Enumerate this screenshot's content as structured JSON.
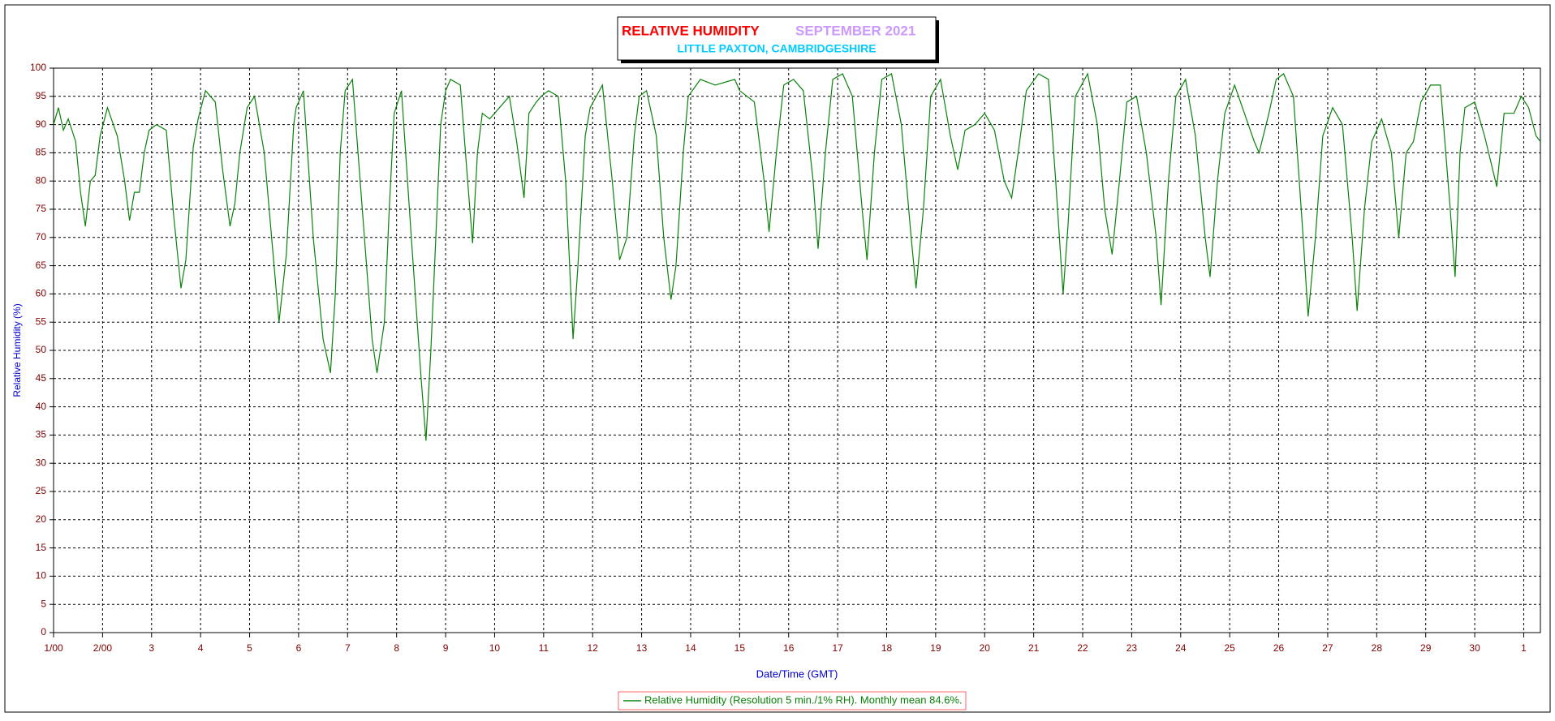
{
  "chart_data": {
    "type": "line",
    "title": "RELATIVE HUMIDITY",
    "title_period": "SEPTEMBER 2021",
    "subtitle": "LITTLE PAXTON, CAMBRIDGESHIRE",
    "x_label": "Date/Time (GMT)",
    "y_label": "Relative Humidity (%)",
    "xlim": [
      0,
      30.34
    ],
    "ylim": [
      0,
      100
    ],
    "yticks": [
      0,
      5,
      10,
      15,
      20,
      25,
      30,
      35,
      40,
      45,
      50,
      55,
      60,
      65,
      70,
      75,
      80,
      85,
      90,
      95,
      100
    ],
    "xticks": [
      {
        "value": 0,
        "label": "1/00"
      },
      {
        "value": 1,
        "label": "2/00"
      },
      {
        "value": 2,
        "label": "3"
      },
      {
        "value": 3,
        "label": "4"
      },
      {
        "value": 4,
        "label": "5"
      },
      {
        "value": 5,
        "label": "6"
      },
      {
        "value": 6,
        "label": "7"
      },
      {
        "value": 7,
        "label": "8"
      },
      {
        "value": 8,
        "label": "9"
      },
      {
        "value": 9,
        "label": "10"
      },
      {
        "value": 10,
        "label": "11"
      },
      {
        "value": 11,
        "label": "12"
      },
      {
        "value": 12,
        "label": "13"
      },
      {
        "value": 13,
        "label": "14"
      },
      {
        "value": 14,
        "label": "15"
      },
      {
        "value": 15,
        "label": "16"
      },
      {
        "value": 16,
        "label": "17"
      },
      {
        "value": 17,
        "label": "18"
      },
      {
        "value": 18,
        "label": "19"
      },
      {
        "value": 19,
        "label": "20"
      },
      {
        "value": 20,
        "label": "21"
      },
      {
        "value": 21,
        "label": "22"
      },
      {
        "value": 22,
        "label": "23"
      },
      {
        "value": 23,
        "label": "24"
      },
      {
        "value": 24,
        "label": "25"
      },
      {
        "value": 25,
        "label": "26"
      },
      {
        "value": 26,
        "label": "27"
      },
      {
        "value": 27,
        "label": "28"
      },
      {
        "value": 28,
        "label": "29"
      },
      {
        "value": 29,
        "label": "30"
      },
      {
        "value": 30,
        "label": "1"
      }
    ],
    "grid": true,
    "x": [
      0,
      0.1,
      0.2,
      0.3,
      0.45,
      0.55,
      0.65,
      0.75,
      0.85,
      0.95,
      1.1,
      1.3,
      1.45,
      1.55,
      1.65,
      1.75,
      1.85,
      1.95,
      2.1,
      2.3,
      2.45,
      2.6,
      2.7,
      2.85,
      2.95,
      3.1,
      3.3,
      3.45,
      3.6,
      3.7,
      3.8,
      3.95,
      4.1,
      4.3,
      4.5,
      4.6,
      4.75,
      4.9,
      4.95,
      5.1,
      5.3,
      5.5,
      5.65,
      5.75,
      5.85,
      5.95,
      6.1,
      6.3,
      6.5,
      6.6,
      6.75,
      6.85,
      6.95,
      7.1,
      7.3,
      7.5,
      7.6,
      7.7,
      7.8,
      7.9,
      8.0,
      8.1,
      8.3,
      8.45,
      8.55,
      8.65,
      8.75,
      8.9,
      9.1,
      9.3,
      9.45,
      9.6,
      9.7,
      9.85,
      9.95,
      10.1,
      10.3,
      10.45,
      10.6,
      10.7,
      10.85,
      10.95,
      11.2,
      11.4,
      11.55,
      11.7,
      11.85,
      11.95,
      12.1,
      12.3,
      12.45,
      12.6,
      12.7,
      12.85,
      12.95,
      13.2,
      13.5,
      13.9,
      14.0,
      14.3,
      14.5,
      14.6,
      14.75,
      14.9,
      15.1,
      15.3,
      15.5,
      15.6,
      15.75,
      15.9,
      16.1,
      16.3,
      16.5,
      16.6,
      16.75,
      16.9,
      17.1,
      17.3,
      17.5,
      17.6,
      17.75,
      17.9,
      18.1,
      18.3,
      18.45,
      18.6,
      18.8,
      19.0,
      19.2,
      19.4,
      19.55,
      19.7,
      19.85,
      20.1,
      20.3,
      20.45,
      20.6,
      20.7,
      20.85,
      21.1,
      21.3,
      21.45,
      21.6,
      21.75,
      21.9,
      22.1,
      22.3,
      22.5,
      22.6,
      22.75,
      22.9,
      23.1,
      23.3,
      23.5,
      23.6,
      23.75,
      23.9,
      24.1,
      24.3,
      24.5,
      24.6,
      24.8,
      24.95,
      25.1,
      25.3,
      25.5,
      25.6,
      25.75,
      25.9,
      26.1,
      26.3,
      26.5,
      26.6,
      26.75,
      26.9,
      27.1,
      27.3,
      27.45,
      27.6,
      27.75,
      27.9,
      28.1,
      28.3,
      28.5,
      28.6,
      28.7,
      28.8,
      29.0,
      29.2,
      29.45,
      29.6,
      29.8,
      29.95,
      30.1,
      30.25,
      30.34
    ],
    "series": [
      {
        "name": "Relative Humidity (Resolution 5 min./1% RH). Monthly mean 84.6%.",
        "color": "#0a820a",
        "values": [
          90,
          93,
          89,
          91,
          87,
          78,
          72,
          80,
          81,
          88,
          93,
          88,
          80,
          73,
          78,
          78,
          85,
          89,
          90,
          89,
          74,
          61,
          66,
          86,
          91,
          96,
          94,
          82,
          72,
          76,
          85,
          93,
          95,
          85,
          65,
          55,
          67,
          90,
          93,
          96,
          70,
          52,
          46,
          60,
          85,
          96,
          98,
          75,
          52,
          46,
          55,
          75,
          92,
          96,
          70,
          45,
          34,
          50,
          70,
          90,
          96,
          98,
          97,
          80,
          69,
          85,
          92,
          91,
          93,
          95,
          87,
          77,
          92,
          94,
          95,
          96,
          95,
          80,
          52,
          65,
          88,
          93,
          97,
          80,
          66,
          70,
          88,
          95,
          96,
          88,
          70,
          59,
          65,
          85,
          95,
          98,
          97,
          98,
          96,
          94,
          80,
          71,
          85,
          97,
          98,
          96,
          80,
          68,
          85,
          98,
          99,
          95,
          75,
          66,
          85,
          98,
          99,
          90,
          70,
          61,
          75,
          95,
          98,
          88,
          82,
          89,
          90,
          92,
          89,
          80,
          77,
          86,
          96,
          99,
          98,
          80,
          60,
          72,
          95,
          99,
          90,
          75,
          67,
          80,
          94,
          95,
          85,
          70,
          58,
          80,
          95,
          98,
          88,
          70,
          63,
          80,
          92,
          97,
          92,
          87,
          85,
          92,
          98,
          99,
          95,
          70,
          56,
          70,
          88,
          93,
          90,
          70,
          57,
          75,
          87,
          91,
          85,
          70,
          85,
          87,
          94,
          97,
          97,
          75,
          63,
          85,
          93,
          94,
          88,
          79,
          92,
          92,
          95,
          93,
          88,
          87
        ]
      }
    ]
  }
}
